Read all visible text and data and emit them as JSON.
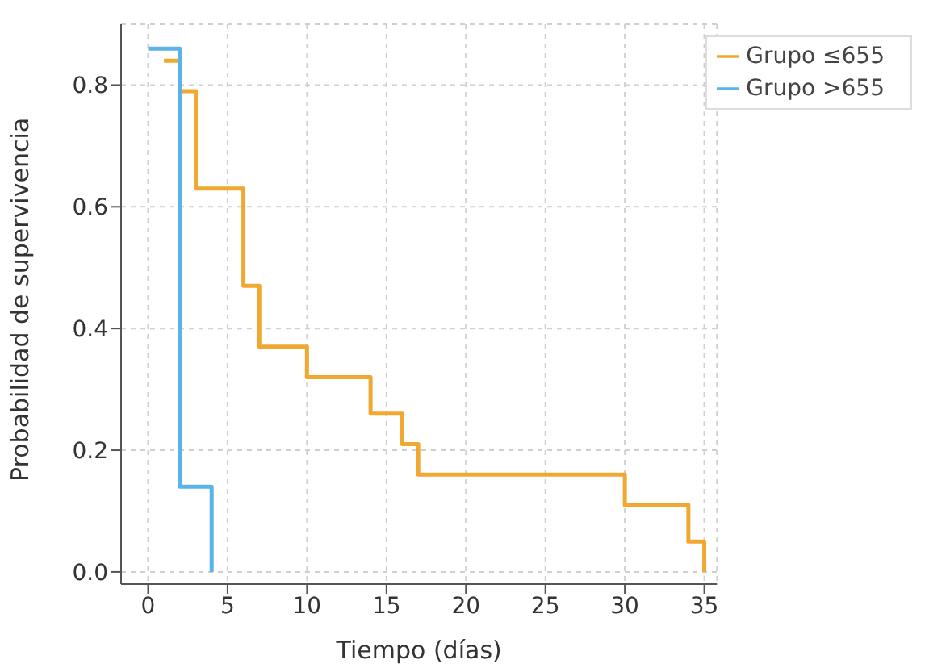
{
  "chart_data": {
    "type": "step",
    "xlabel": "Tiempo (días)",
    "ylabel": "Probabilidad de supervivencia",
    "series": [
      {
        "name": "Grupo ≤655",
        "color": "#f0a830",
        "x": [
          1,
          2,
          3,
          6,
          7,
          10,
          14,
          16,
          17,
          30,
          34,
          35
        ],
        "values": [
          0.84,
          0.79,
          0.63,
          0.47,
          0.37,
          0.32,
          0.26,
          0.21,
          0.16,
          0.11,
          0.05,
          0
        ]
      },
      {
        "name": "Grupo >655",
        "color": "#5ab4e8",
        "x": [
          0,
          2,
          4
        ],
        "values": [
          0.86,
          0.14,
          0
        ]
      }
    ],
    "xlim": [
      -1.7,
      35.8
    ],
    "xticks": [
      0,
      5,
      10,
      15,
      20,
      25,
      30,
      35
    ],
    "ylim": [
      -0.02,
      0.9
    ],
    "yticks": [
      {
        "value": 0,
        "label": "0.0"
      },
      {
        "value": 0.2,
        "label": "0.2"
      },
      {
        "value": 0.4,
        "label": "0.4"
      },
      {
        "value": 0.6,
        "label": "0.6"
      },
      {
        "value": 0.8,
        "label": "0.8"
      }
    ],
    "grid": true,
    "legend": "top right",
    "line_style": "solid",
    "marker": "none"
  }
}
